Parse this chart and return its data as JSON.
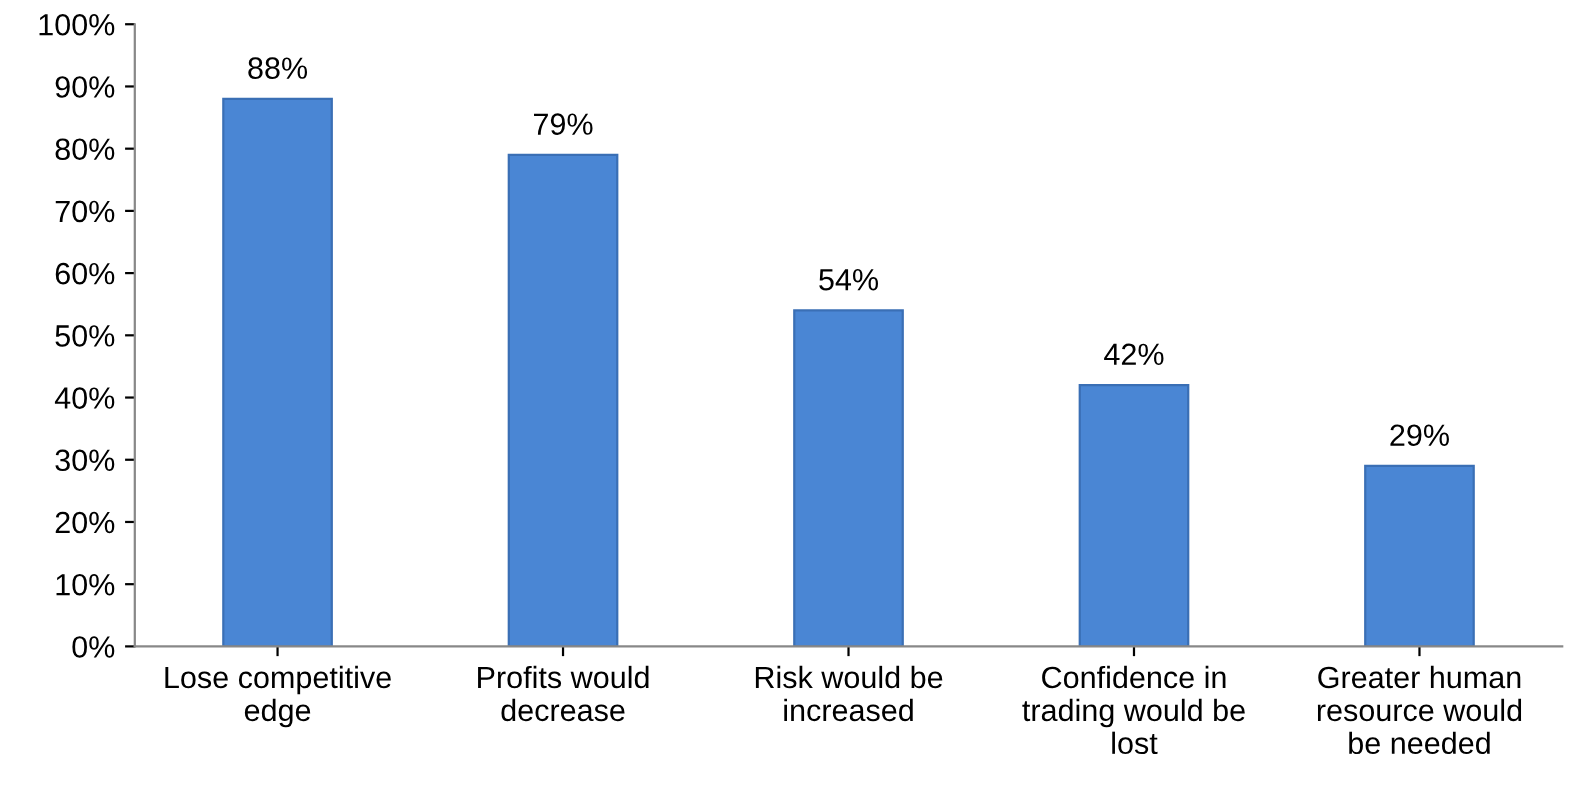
{
  "chart_data": {
    "type": "bar",
    "categories": [
      "Lose competitive edge",
      "Profits would decrease",
      "Risk would be increased",
      "Confidence in trading would be lost",
      "Greater human resource would be needed"
    ],
    "values": [
      88,
      79,
      54,
      42,
      29
    ],
    "value_labels": [
      "88%",
      "79%",
      "54%",
      "42%",
      "29%"
    ],
    "color": "#4a86d4",
    "ylim": [
      0,
      100
    ],
    "yticks": [
      {
        "value": 0,
        "label": "0%"
      },
      {
        "value": 10,
        "label": "10%"
      },
      {
        "value": 20,
        "label": "20%"
      },
      {
        "value": 30,
        "label": "30%"
      },
      {
        "value": 40,
        "label": "40%"
      },
      {
        "value": 50,
        "label": "50%"
      },
      {
        "value": 60,
        "label": "60%"
      },
      {
        "value": 70,
        "label": "70%"
      },
      {
        "value": 80,
        "label": "80%"
      },
      {
        "value": 90,
        "label": "90%"
      },
      {
        "value": 100,
        "label": "100%"
      }
    ],
    "grid": false,
    "legend": false
  }
}
